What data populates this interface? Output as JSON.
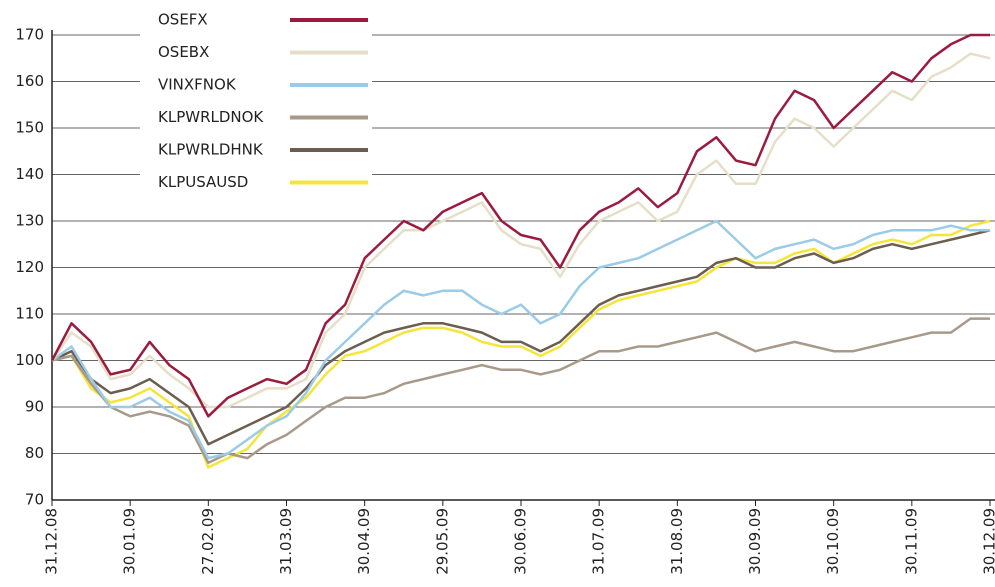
{
  "chart_data": {
    "type": "line",
    "categories": [
      "31.12.08",
      null,
      null,
      null,
      "30.01.09",
      null,
      null,
      null,
      "27.02.09",
      null,
      null,
      null,
      "31.03.09",
      null,
      null,
      null,
      "30.04.09",
      null,
      null,
      null,
      "29.05.09",
      null,
      null,
      null,
      "30.06.09",
      null,
      null,
      null,
      "31.07.09",
      null,
      null,
      null,
      "31.08.09",
      null,
      null,
      null,
      "30.09.09",
      null,
      null,
      null,
      "30.10.09",
      null,
      null,
      null,
      "30.11.09",
      null,
      null,
      null,
      "30.12.09"
    ],
    "series": [
      {
        "name": "OSEFX",
        "color": "#9b1b3f",
        "values": [
          100,
          108,
          104,
          97,
          98,
          104,
          99,
          96,
          88,
          92,
          94,
          96,
          95,
          98,
          108,
          112,
          122,
          126,
          130,
          128,
          132,
          134,
          136,
          130,
          127,
          126,
          120,
          128,
          132,
          134,
          137,
          133,
          136,
          145,
          148,
          143,
          142,
          152,
          158,
          156,
          150,
          154,
          158,
          162,
          160,
          165,
          168,
          170,
          170
        ]
      },
      {
        "name": "OSEBX",
        "color": "#e6dfc8",
        "values": [
          100,
          106,
          103,
          96,
          97,
          101,
          97,
          94,
          90,
          90,
          92,
          94,
          94,
          96,
          106,
          110,
          120,
          124,
          128,
          128,
          130,
          132,
          134,
          128,
          125,
          124,
          118,
          125,
          130,
          132,
          134,
          130,
          132,
          140,
          143,
          138,
          138,
          147,
          152,
          150,
          146,
          150,
          154,
          158,
          156,
          161,
          163,
          166,
          165
        ]
      },
      {
        "name": "VINXFNOK",
        "color": "#9ccbe8",
        "values": [
          100,
          103,
          96,
          90,
          90,
          92,
          89,
          87,
          79,
          80,
          83,
          86,
          88,
          93,
          100,
          104,
          108,
          112,
          115,
          114,
          115,
          115,
          112,
          110,
          112,
          108,
          110,
          116,
          120,
          121,
          122,
          124,
          126,
          128,
          130,
          126,
          122,
          124,
          125,
          126,
          124,
          125,
          127,
          128,
          128,
          128,
          129,
          128,
          128
        ]
      },
      {
        "name": "KLPWRLDNOK",
        "color": "#a89a8a",
        "values": [
          100,
          101,
          95,
          90,
          88,
          89,
          88,
          86,
          78,
          80,
          79,
          82,
          84,
          87,
          90,
          92,
          92,
          93,
          95,
          96,
          97,
          98,
          99,
          98,
          98,
          97,
          98,
          100,
          102,
          102,
          103,
          103,
          104,
          105,
          106,
          104,
          102,
          103,
          104,
          103,
          102,
          102,
          103,
          104,
          105,
          106,
          106,
          109,
          109
        ]
      },
      {
        "name": "KLPWRLDHNK",
        "color": "#6b5e50",
        "values": [
          100,
          102,
          96,
          93,
          94,
          96,
          93,
          90,
          82,
          84,
          86,
          88,
          90,
          94,
          99,
          102,
          104,
          106,
          107,
          108,
          108,
          107,
          106,
          104,
          104,
          102,
          104,
          108,
          112,
          114,
          115,
          116,
          117,
          118,
          121,
          122,
          120,
          120,
          122,
          123,
          121,
          122,
          124,
          125,
          124,
          125,
          126,
          127,
          128
        ]
      },
      {
        "name": "KLPUSAUSD",
        "color": "#f5e53a",
        "values": [
          100,
          101,
          94,
          91,
          92,
          94,
          91,
          88,
          77,
          79,
          81,
          86,
          89,
          92,
          97,
          101,
          102,
          104,
          106,
          107,
          107,
          106,
          104,
          103,
          103,
          101,
          103,
          107,
          111,
          113,
          114,
          115,
          116,
          117,
          120,
          122,
          121,
          121,
          123,
          124,
          121,
          123,
          125,
          126,
          125,
          127,
          127,
          129,
          130
        ]
      }
    ],
    "ylim": [
      70,
      170
    ],
    "yticks": [
      70,
      80,
      90,
      100,
      110,
      120,
      130,
      140,
      150,
      160,
      170
    ],
    "grid": true,
    "legend": "upper left"
  }
}
